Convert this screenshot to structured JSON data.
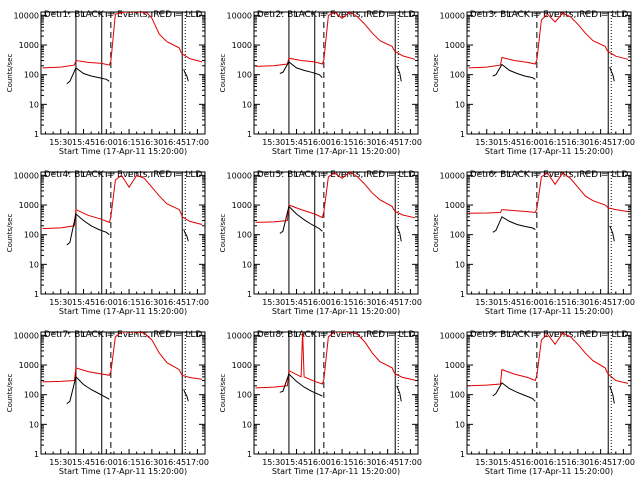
{
  "chart_data": {
    "type": "line",
    "layout": "3x3 grid of panels",
    "yscale": "log",
    "ylim": [
      1,
      13000
    ],
    "y_ticks": [
      1,
      10,
      100,
      1000,
      10000
    ],
    "y_tick_labels": [
      "1",
      "10",
      "100",
      "1000",
      "10000"
    ],
    "x_ticks_minutes": [
      0,
      15,
      30,
      45,
      60,
      75,
      90
    ],
    "x_tick_labels": [
      "15:30",
      "15:45",
      "16:00",
      "16:15",
      "16:30",
      "16:45",
      "17:00"
    ],
    "xlim_minutes": [
      -13,
      95
    ],
    "x_minutes_origin": "15:30",
    "xlabel": "Start Time (17-Apr-11 15:20:00)",
    "ylabel": "Counts/sec",
    "colors": {
      "events": "#000000",
      "lld": "#e00000"
    },
    "panels": [
      {
        "title": "Det 1: BLACK = Events, RED = LLD",
        "solid_lines": [
          10,
          27,
          80
        ],
        "dashed_lines": [
          33
        ],
        "dotted_lines": [
          82
        ],
        "lld": {
          "x": [
            -12,
            0,
            9,
            10,
            18,
            27,
            32,
            33,
            36,
            42,
            47,
            52,
            57,
            60,
            65,
            70,
            78,
            79,
            80,
            85,
            93
          ],
          "y": [
            170,
            180,
            210,
            300,
            260,
            240,
            210,
            290,
            11000,
            14000,
            14000,
            14000,
            12000,
            8000,
            2300,
            1300,
            800,
            600,
            500,
            350,
            270
          ]
        },
        "events": {
          "x": [
            4,
            6,
            10,
            15,
            20,
            25,
            30,
            32
          ],
          "y": [
            50,
            60,
            170,
            110,
            90,
            80,
            70,
            60
          ]
        },
        "events_tail": {
          "x": [
            81,
            82,
            83,
            84
          ],
          "y": [
            150,
            110,
            90,
            60
          ]
        }
      },
      {
        "title": "Det 2: BLACK = Events, RED = LLD",
        "solid_lines": [
          10,
          27,
          80
        ],
        "dashed_lines": [
          33
        ],
        "dotted_lines": [
          82
        ],
        "lld": {
          "x": [
            -12,
            0,
            9,
            10,
            18,
            27,
            32,
            33,
            36,
            40,
            45,
            50,
            55,
            60,
            65,
            70,
            78,
            79,
            80,
            85,
            93
          ],
          "y": [
            190,
            200,
            230,
            360,
            300,
            270,
            230,
            320,
            10000,
            13000,
            8000,
            13000,
            9000,
            5000,
            2500,
            1400,
            900,
            700,
            600,
            430,
            330
          ]
        },
        "events": {
          "x": [
            4,
            6,
            10,
            15,
            20,
            25,
            30,
            32
          ],
          "y": [
            110,
            120,
            270,
            170,
            140,
            120,
            100,
            80
          ]
        },
        "events_tail": {
          "x": [
            81,
            82,
            83,
            84
          ],
          "y": [
            200,
            150,
            110,
            60
          ]
        }
      },
      {
        "title": "Det 3: BLACK = Events, RED = LLD",
        "solid_lines": [
          80
        ],
        "dashed_lines": [
          33
        ],
        "dotted_lines": [
          82
        ],
        "lld": {
          "x": [
            -12,
            0,
            9,
            10,
            18,
            27,
            32,
            33,
            36,
            40,
            45,
            50,
            55,
            60,
            65,
            70,
            78,
            79,
            80,
            85,
            93
          ],
          "y": [
            170,
            180,
            210,
            380,
            300,
            260,
            230,
            320,
            7000,
            11000,
            6000,
            12000,
            9000,
            5000,
            2500,
            1400,
            900,
            700,
            600,
            420,
            330
          ]
        },
        "events": {
          "x": [
            4,
            6,
            10,
            15,
            20,
            25,
            30,
            32
          ],
          "y": [
            90,
            100,
            220,
            140,
            110,
            90,
            80,
            70
          ]
        },
        "events_tail": {
          "x": [
            81,
            82,
            83,
            84
          ],
          "y": [
            180,
            130,
            100,
            60
          ]
        }
      },
      {
        "title": "Det 4: BLACK = Events, RED = LLD",
        "solid_lines": [
          10,
          27,
          80
        ],
        "dashed_lines": [
          33
        ],
        "dotted_lines": [
          82
        ],
        "lld": {
          "x": [
            -12,
            0,
            9,
            10,
            18,
            27,
            32,
            33,
            36,
            40,
            45,
            50,
            55,
            60,
            65,
            70,
            78,
            79,
            80,
            85,
            93
          ],
          "y": [
            160,
            170,
            200,
            700,
            450,
            330,
            260,
            400,
            7000,
            10000,
            4000,
            10000,
            8000,
            4000,
            2000,
            1100,
            700,
            550,
            400,
            280,
            220
          ]
        },
        "events": {
          "x": [
            4,
            6,
            10,
            15,
            20,
            25,
            30,
            32
          ],
          "y": [
            45,
            55,
            500,
            300,
            200,
            150,
            120,
            100
          ]
        },
        "events_tail": {
          "x": [
            81,
            82,
            83,
            84
          ],
          "y": [
            150,
            110,
            90,
            60
          ]
        }
      },
      {
        "title": "Det 5: BLACK = Events, RED = LLD",
        "solid_lines": [
          10,
          27,
          80
        ],
        "dashed_lines": [
          33
        ],
        "dotted_lines": [
          82
        ],
        "lld": {
          "x": [
            -12,
            0,
            9,
            10,
            18,
            27,
            32,
            33,
            36,
            40,
            45,
            50,
            55,
            60,
            65,
            70,
            78,
            79,
            80,
            85,
            93
          ],
          "y": [
            260,
            270,
            300,
            1000,
            700,
            500,
            380,
            600,
            9000,
            12000,
            8000,
            13000,
            9000,
            5000,
            2500,
            1500,
            900,
            700,
            600,
            460,
            370
          ]
        },
        "events": {
          "x": [
            4,
            6,
            10,
            15,
            20,
            25,
            30,
            32
          ],
          "y": [
            110,
            130,
            900,
            500,
            320,
            220,
            160,
            130
          ]
        },
        "events_tail": {
          "x": [
            81,
            82,
            83,
            84
          ],
          "y": [
            200,
            150,
            110,
            60
          ]
        }
      },
      {
        "title": "Det 6: BLACK = Events, RED = LLD",
        "solid_lines": [
          80
        ],
        "dashed_lines": [
          33
        ],
        "dotted_lines": [
          82
        ],
        "lld": {
          "x": [
            -12,
            0,
            9,
            10,
            18,
            27,
            32,
            33,
            36,
            40,
            45,
            50,
            55,
            60,
            65,
            70,
            78,
            79,
            80,
            85,
            93
          ],
          "y": [
            530,
            540,
            560,
            700,
            650,
            600,
            560,
            750,
            9000,
            12000,
            5000,
            12000,
            8000,
            4000,
            2000,
            1400,
            1000,
            900,
            800,
            700,
            600
          ]
        },
        "events": {
          "x": [
            4,
            6,
            10,
            15,
            20,
            25,
            30,
            32
          ],
          "y": [
            120,
            140,
            400,
            280,
            220,
            190,
            170,
            150
          ]
        },
        "events_tail": {
          "x": [
            81,
            82,
            83,
            84
          ],
          "y": [
            200,
            150,
            110,
            60
          ]
        }
      },
      {
        "title": "Det 7: BLACK = Events, RED = LLD",
        "solid_lines": [
          10,
          27,
          80
        ],
        "dashed_lines": [
          33
        ],
        "dotted_lines": [
          82
        ],
        "lld": {
          "x": [
            -12,
            0,
            9,
            10,
            18,
            27,
            32,
            33,
            36,
            40,
            45,
            50,
            55,
            60,
            65,
            70,
            78,
            79,
            80,
            85,
            93
          ],
          "y": [
            270,
            280,
            300,
            800,
            600,
            500,
            450,
            600,
            9000,
            14000,
            14000,
            14000,
            12000,
            7000,
            2500,
            1200,
            700,
            550,
            450,
            380,
            330
          ]
        },
        "events": {
          "x": [
            4,
            6,
            10,
            15,
            20,
            25,
            30,
            32
          ],
          "y": [
            50,
            60,
            400,
            220,
            150,
            110,
            80,
            70
          ]
        },
        "events_tail": {
          "x": [
            81,
            82,
            83,
            84
          ],
          "y": [
            150,
            110,
            90,
            60
          ]
        }
      },
      {
        "title": "Det 8: BLACK = Events, RED = LLD",
        "solid_lines": [
          10,
          27,
          80
        ],
        "dashed_lines": [
          33
        ],
        "dotted_lines": [
          82
        ],
        "lld": {
          "x": [
            -12,
            0,
            9,
            10,
            18,
            19,
            20,
            27,
            32,
            33,
            36,
            40,
            45,
            50,
            55,
            60,
            65,
            70,
            78,
            79,
            80,
            85,
            93
          ],
          "y": [
            170,
            180,
            200,
            650,
            400,
            14000,
            400,
            280,
            230,
            330,
            9000,
            14000,
            14000,
            14000,
            11000,
            6000,
            2500,
            1300,
            800,
            600,
            500,
            380,
            310
          ]
        },
        "events": {
          "x": [
            4,
            6,
            10,
            15,
            20,
            25,
            30,
            32
          ],
          "y": [
            120,
            130,
            500,
            280,
            180,
            130,
            100,
            90
          ]
        },
        "events_tail": {
          "x": [
            81,
            82,
            83,
            84
          ],
          "y": [
            200,
            150,
            110,
            60
          ]
        }
      },
      {
        "title": "Det 9: BLACK = Events, RED = LLD",
        "solid_lines": [
          80
        ],
        "dashed_lines": [
          33
        ],
        "dotted_lines": [
          82
        ],
        "lld": {
          "x": [
            -12,
            0,
            9,
            10,
            18,
            27,
            32,
            33,
            36,
            40,
            45,
            50,
            55,
            60,
            65,
            70,
            78,
            79,
            80,
            85,
            93
          ],
          "y": [
            200,
            210,
            230,
            700,
            500,
            380,
            300,
            450,
            7000,
            11000,
            5000,
            12000,
            9000,
            5000,
            2500,
            1400,
            800,
            600,
            500,
            300,
            240
          ]
        },
        "events": {
          "x": [
            4,
            6,
            10,
            15,
            20,
            25,
            30,
            32
          ],
          "y": [
            90,
            110,
            250,
            160,
            120,
            95,
            75,
            60
          ]
        },
        "events_tail": {
          "x": [
            81,
            82,
            83,
            84
          ],
          "y": [
            200,
            140,
            100,
            50
          ]
        }
      }
    ]
  }
}
